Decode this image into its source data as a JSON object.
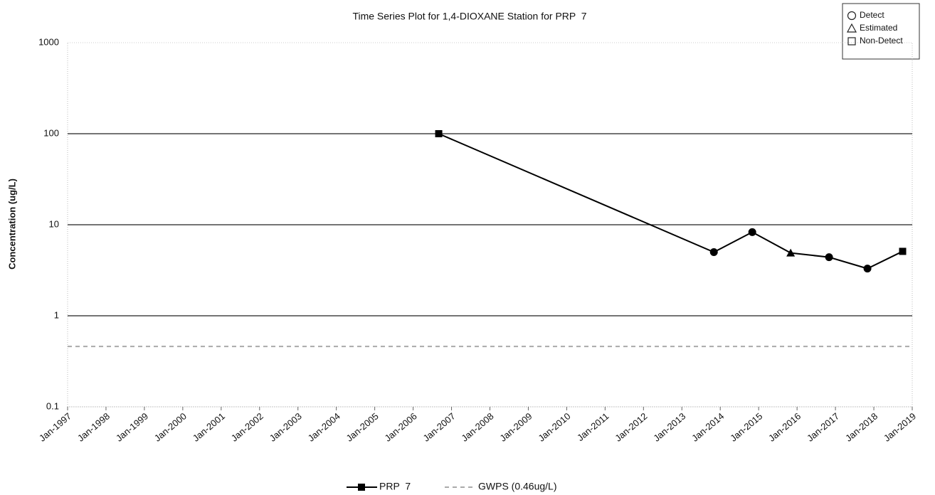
{
  "chart_data": {
    "type": "line",
    "title": "Time Series Plot for 1,4-DIOXANE Station for PRP  7",
    "y_label": "Concentration (ug/L)",
    "log_y": true,
    "ylim": [
      0.1,
      1000
    ],
    "yticks": [
      0.1,
      1,
      10,
      100,
      1000
    ],
    "xlim": [
      "1997-01",
      "2019-01"
    ],
    "xticks": [
      {
        "value": "1997-01",
        "label": "Jan-1997"
      },
      {
        "value": "1998-01",
        "label": "Jan-1998"
      },
      {
        "value": "1999-01",
        "label": "Jan-1999"
      },
      {
        "value": "2000-01",
        "label": "Jan-2000"
      },
      {
        "value": "2001-01",
        "label": "Jan-2001"
      },
      {
        "value": "2002-01",
        "label": "Jan-2002"
      },
      {
        "value": "2003-01",
        "label": "Jan-2003"
      },
      {
        "value": "2004-01",
        "label": "Jan-2004"
      },
      {
        "value": "2005-01",
        "label": "Jan-2005"
      },
      {
        "value": "2006-01",
        "label": "Jan-2006"
      },
      {
        "value": "2007-01",
        "label": "Jan-2007"
      },
      {
        "value": "2008-01",
        "label": "Jan-2008"
      },
      {
        "value": "2009-01",
        "label": "Jan-2009"
      },
      {
        "value": "2010-01",
        "label": "Jan-2010"
      },
      {
        "value": "2011-01",
        "label": "Jan-2011"
      },
      {
        "value": "2012-01",
        "label": "Jan-2012"
      },
      {
        "value": "2013-01",
        "label": "Jan-2013"
      },
      {
        "value": "2014-01",
        "label": "Jan-2014"
      },
      {
        "value": "2015-01",
        "label": "Jan-2015"
      },
      {
        "value": "2016-01",
        "label": "Jan-2016"
      },
      {
        "value": "2017-01",
        "label": "Jan-2017"
      },
      {
        "value": "2018-01",
        "label": "Jan-2018"
      },
      {
        "value": "2019-01",
        "label": "Jan-2019"
      }
    ],
    "grid": true,
    "series": [
      {
        "name": "PRP  7",
        "color": "#000000",
        "x": [
          "2006-09",
          "2013-11",
          "2014-11",
          "2015-11",
          "2016-11",
          "2017-11",
          "2018-10"
        ],
        "values": [
          100,
          5.0,
          8.3,
          4.9,
          4.4,
          3.3,
          5.1
        ],
        "markers": [
          "square",
          "circle",
          "circle",
          "triangle",
          "circle",
          "circle",
          "square"
        ]
      }
    ],
    "reference_lines": [
      {
        "name": "GWPS (0.46ug/L)",
        "value": 0.46,
        "color": "#aaaaaa",
        "dashed": true
      }
    ],
    "marker_legend": [
      {
        "label": "Detect",
        "marker": "circle"
      },
      {
        "label": "Estimated",
        "marker": "triangle"
      },
      {
        "label": "Non-Detect",
        "marker": "square"
      }
    ]
  }
}
